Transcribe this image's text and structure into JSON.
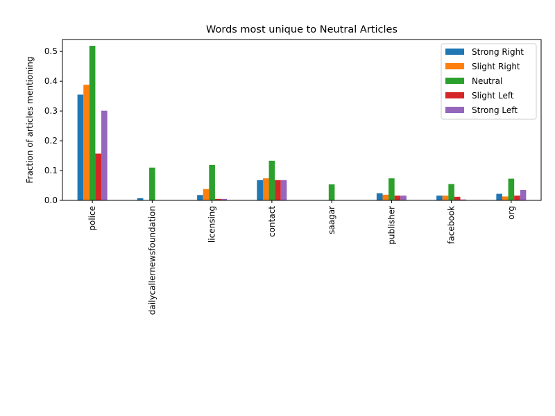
{
  "chart_data": {
    "type": "bar",
    "title": "Words most unique to Neutral Articles",
    "xlabel": "",
    "ylabel": "Fraction of articles mentioning",
    "ylim": [
      0,
      0.54
    ],
    "yticks": [
      "0.0",
      "0.1",
      "0.2",
      "0.3",
      "0.4",
      "0.5"
    ],
    "grid": false,
    "legend_position": "top-right",
    "categories": [
      "police",
      "dailycallernewsfoundation",
      "licensing",
      "contact",
      "saagar",
      "publisher",
      "facebook",
      "org"
    ],
    "series": [
      {
        "name": "Strong Right",
        "color": "#1f77b4",
        "values": [
          0.355,
          0.007,
          0.018,
          0.068,
          0.0,
          0.024,
          0.016,
          0.022
        ]
      },
      {
        "name": "Slight Right",
        "color": "#ff7f0e",
        "values": [
          0.388,
          0.0,
          0.038,
          0.074,
          0.0,
          0.019,
          0.016,
          0.013
        ]
      },
      {
        "name": "Neutral",
        "color": "#2ca02c",
        "values": [
          0.519,
          0.11,
          0.119,
          0.133,
          0.054,
          0.074,
          0.055,
          0.073
        ]
      },
      {
        "name": "Slight Left",
        "color": "#d62728",
        "values": [
          0.157,
          0.0,
          0.005,
          0.068,
          0.0,
          0.016,
          0.012,
          0.016
        ]
      },
      {
        "name": "Strong Left",
        "color": "#9467bd",
        "values": [
          0.301,
          0.0,
          0.005,
          0.068,
          0.0,
          0.016,
          0.003,
          0.035
        ]
      }
    ]
  }
}
